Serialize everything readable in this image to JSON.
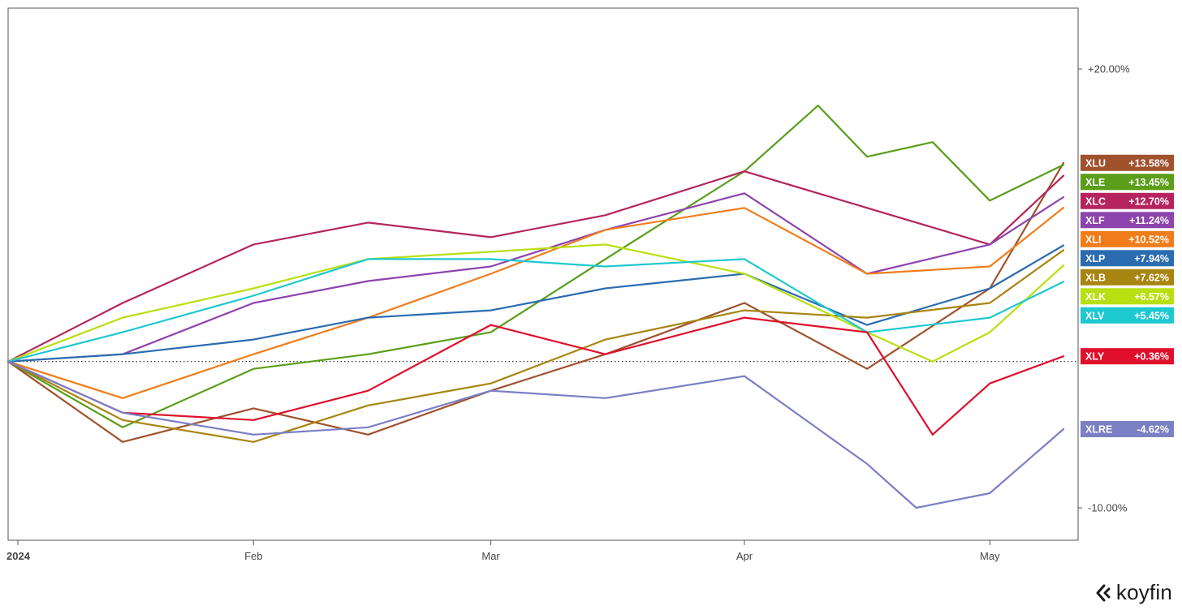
{
  "brand": {
    "logo_text": "koyfin"
  },
  "chart_data": {
    "type": "line",
    "title": "",
    "xlabel": "",
    "ylabel": "",
    "y_unit": "% change",
    "y_ticks": [
      {
        "value": 20,
        "label": "+20.00%"
      },
      {
        "value": -10,
        "label": "-10.00%"
      }
    ],
    "x_tick_labels": [
      "2024",
      "Feb",
      "Mar",
      "Apr",
      "May"
    ],
    "date_range": [
      "2024-01-02",
      "2024-05-10"
    ],
    "baseline": 0,
    "grid": false,
    "legend_position": "right",
    "series": [
      {
        "name": "XLU",
        "end_label": "+13.58%",
        "color": "#a0522d",
        "dates": [
          "2024-01-02",
          "2024-01-16",
          "2024-02-01",
          "2024-02-15",
          "2024-03-01",
          "2024-03-15",
          "2024-04-01",
          "2024-04-16",
          "2024-05-01",
          "2024-05-10"
        ],
        "values": [
          0,
          -5.5,
          -3.2,
          -5.0,
          -2.0,
          0.5,
          4.0,
          -0.5,
          5.0,
          13.58
        ]
      },
      {
        "name": "XLE",
        "end_label": "+13.45%",
        "color": "#5a9e1a",
        "dates": [
          "2024-01-02",
          "2024-01-16",
          "2024-02-01",
          "2024-02-15",
          "2024-03-01",
          "2024-03-15",
          "2024-04-01",
          "2024-04-10",
          "2024-04-16",
          "2024-04-24",
          "2024-05-01",
          "2024-05-10"
        ],
        "values": [
          0,
          -4.5,
          -0.5,
          0.5,
          2.0,
          7.0,
          13.0,
          17.5,
          14.0,
          15.0,
          11.0,
          13.45
        ]
      },
      {
        "name": "XLC",
        "end_label": "+12.70%",
        "color": "#b5245e",
        "dates": [
          "2024-01-02",
          "2024-01-16",
          "2024-02-01",
          "2024-02-15",
          "2024-03-01",
          "2024-03-15",
          "2024-04-01",
          "2024-04-16",
          "2024-05-01",
          "2024-05-10"
        ],
        "values": [
          0,
          4.0,
          8.0,
          9.5,
          8.5,
          10.0,
          13.0,
          10.5,
          8.0,
          12.7
        ]
      },
      {
        "name": "XLF",
        "end_label": "+11.24%",
        "color": "#8e44ad",
        "dates": [
          "2024-01-02",
          "2024-01-16",
          "2024-02-01",
          "2024-02-15",
          "2024-03-01",
          "2024-03-15",
          "2024-04-01",
          "2024-04-16",
          "2024-05-01",
          "2024-05-10"
        ],
        "values": [
          0,
          0.5,
          4.0,
          5.5,
          6.5,
          9.0,
          11.5,
          6.0,
          8.0,
          11.24
        ]
      },
      {
        "name": "XLI",
        "end_label": "+10.52%",
        "color": "#f07d1a",
        "dates": [
          "2024-01-02",
          "2024-01-16",
          "2024-02-01",
          "2024-02-15",
          "2024-03-01",
          "2024-03-15",
          "2024-04-01",
          "2024-04-16",
          "2024-05-01",
          "2024-05-10"
        ],
        "values": [
          0,
          -2.5,
          0.5,
          3.0,
          6.0,
          9.0,
          10.5,
          6.0,
          6.5,
          10.52
        ]
      },
      {
        "name": "XLP",
        "end_label": "+7.94%",
        "color": "#2b6cb0",
        "dates": [
          "2024-01-02",
          "2024-01-16",
          "2024-02-01",
          "2024-02-15",
          "2024-03-01",
          "2024-03-15",
          "2024-04-01",
          "2024-04-16",
          "2024-05-01",
          "2024-05-10"
        ],
        "values": [
          0,
          0.5,
          1.5,
          3.0,
          3.5,
          5.0,
          6.0,
          2.5,
          5.0,
          7.94
        ]
      },
      {
        "name": "XLB",
        "end_label": "+7.62%",
        "color": "#a88410",
        "dates": [
          "2024-01-02",
          "2024-01-16",
          "2024-02-01",
          "2024-02-15",
          "2024-03-01",
          "2024-03-15",
          "2024-04-01",
          "2024-04-16",
          "2024-05-01",
          "2024-05-10"
        ],
        "values": [
          0,
          -4.0,
          -5.5,
          -3.0,
          -1.5,
          1.5,
          3.5,
          3.0,
          4.0,
          7.62
        ]
      },
      {
        "name": "XLK",
        "end_label": "+6.57%",
        "color": "#b8e010",
        "dates": [
          "2024-01-02",
          "2024-01-16",
          "2024-02-01",
          "2024-02-15",
          "2024-03-01",
          "2024-03-15",
          "2024-04-01",
          "2024-04-16",
          "2024-04-24",
          "2024-05-01",
          "2024-05-10"
        ],
        "values": [
          0,
          3.0,
          5.0,
          7.0,
          7.5,
          8.0,
          6.0,
          2.0,
          0.0,
          2.0,
          6.57
        ]
      },
      {
        "name": "XLV",
        "end_label": "+5.45%",
        "color": "#1ec8cf",
        "dates": [
          "2024-01-02",
          "2024-01-16",
          "2024-02-01",
          "2024-02-15",
          "2024-03-01",
          "2024-03-15",
          "2024-04-01",
          "2024-04-16",
          "2024-05-01",
          "2024-05-10"
        ],
        "values": [
          0,
          2.0,
          4.5,
          7.0,
          7.0,
          6.5,
          7.0,
          2.0,
          3.0,
          5.45
        ]
      },
      {
        "name": "XLY",
        "end_label": "+0.36%",
        "color": "#e0102c",
        "dates": [
          "2024-01-02",
          "2024-01-16",
          "2024-02-01",
          "2024-02-15",
          "2024-03-01",
          "2024-03-15",
          "2024-04-01",
          "2024-04-16",
          "2024-04-24",
          "2024-05-01",
          "2024-05-10"
        ],
        "values": [
          0,
          -3.5,
          -4.0,
          -2.0,
          2.5,
          0.5,
          3.0,
          2.0,
          -5.0,
          -1.5,
          0.36
        ]
      },
      {
        "name": "XLRE",
        "end_label": "-4.62%",
        "color": "#7b7fc4",
        "dates": [
          "2024-01-02",
          "2024-01-16",
          "2024-02-01",
          "2024-02-15",
          "2024-03-01",
          "2024-03-15",
          "2024-04-01",
          "2024-04-16",
          "2024-04-22",
          "2024-05-01",
          "2024-05-10"
        ],
        "values": [
          0,
          -3.5,
          -5.0,
          -4.5,
          -2.0,
          -2.5,
          -1.0,
          -7.0,
          -10.0,
          -9.0,
          -4.62
        ]
      }
    ]
  }
}
